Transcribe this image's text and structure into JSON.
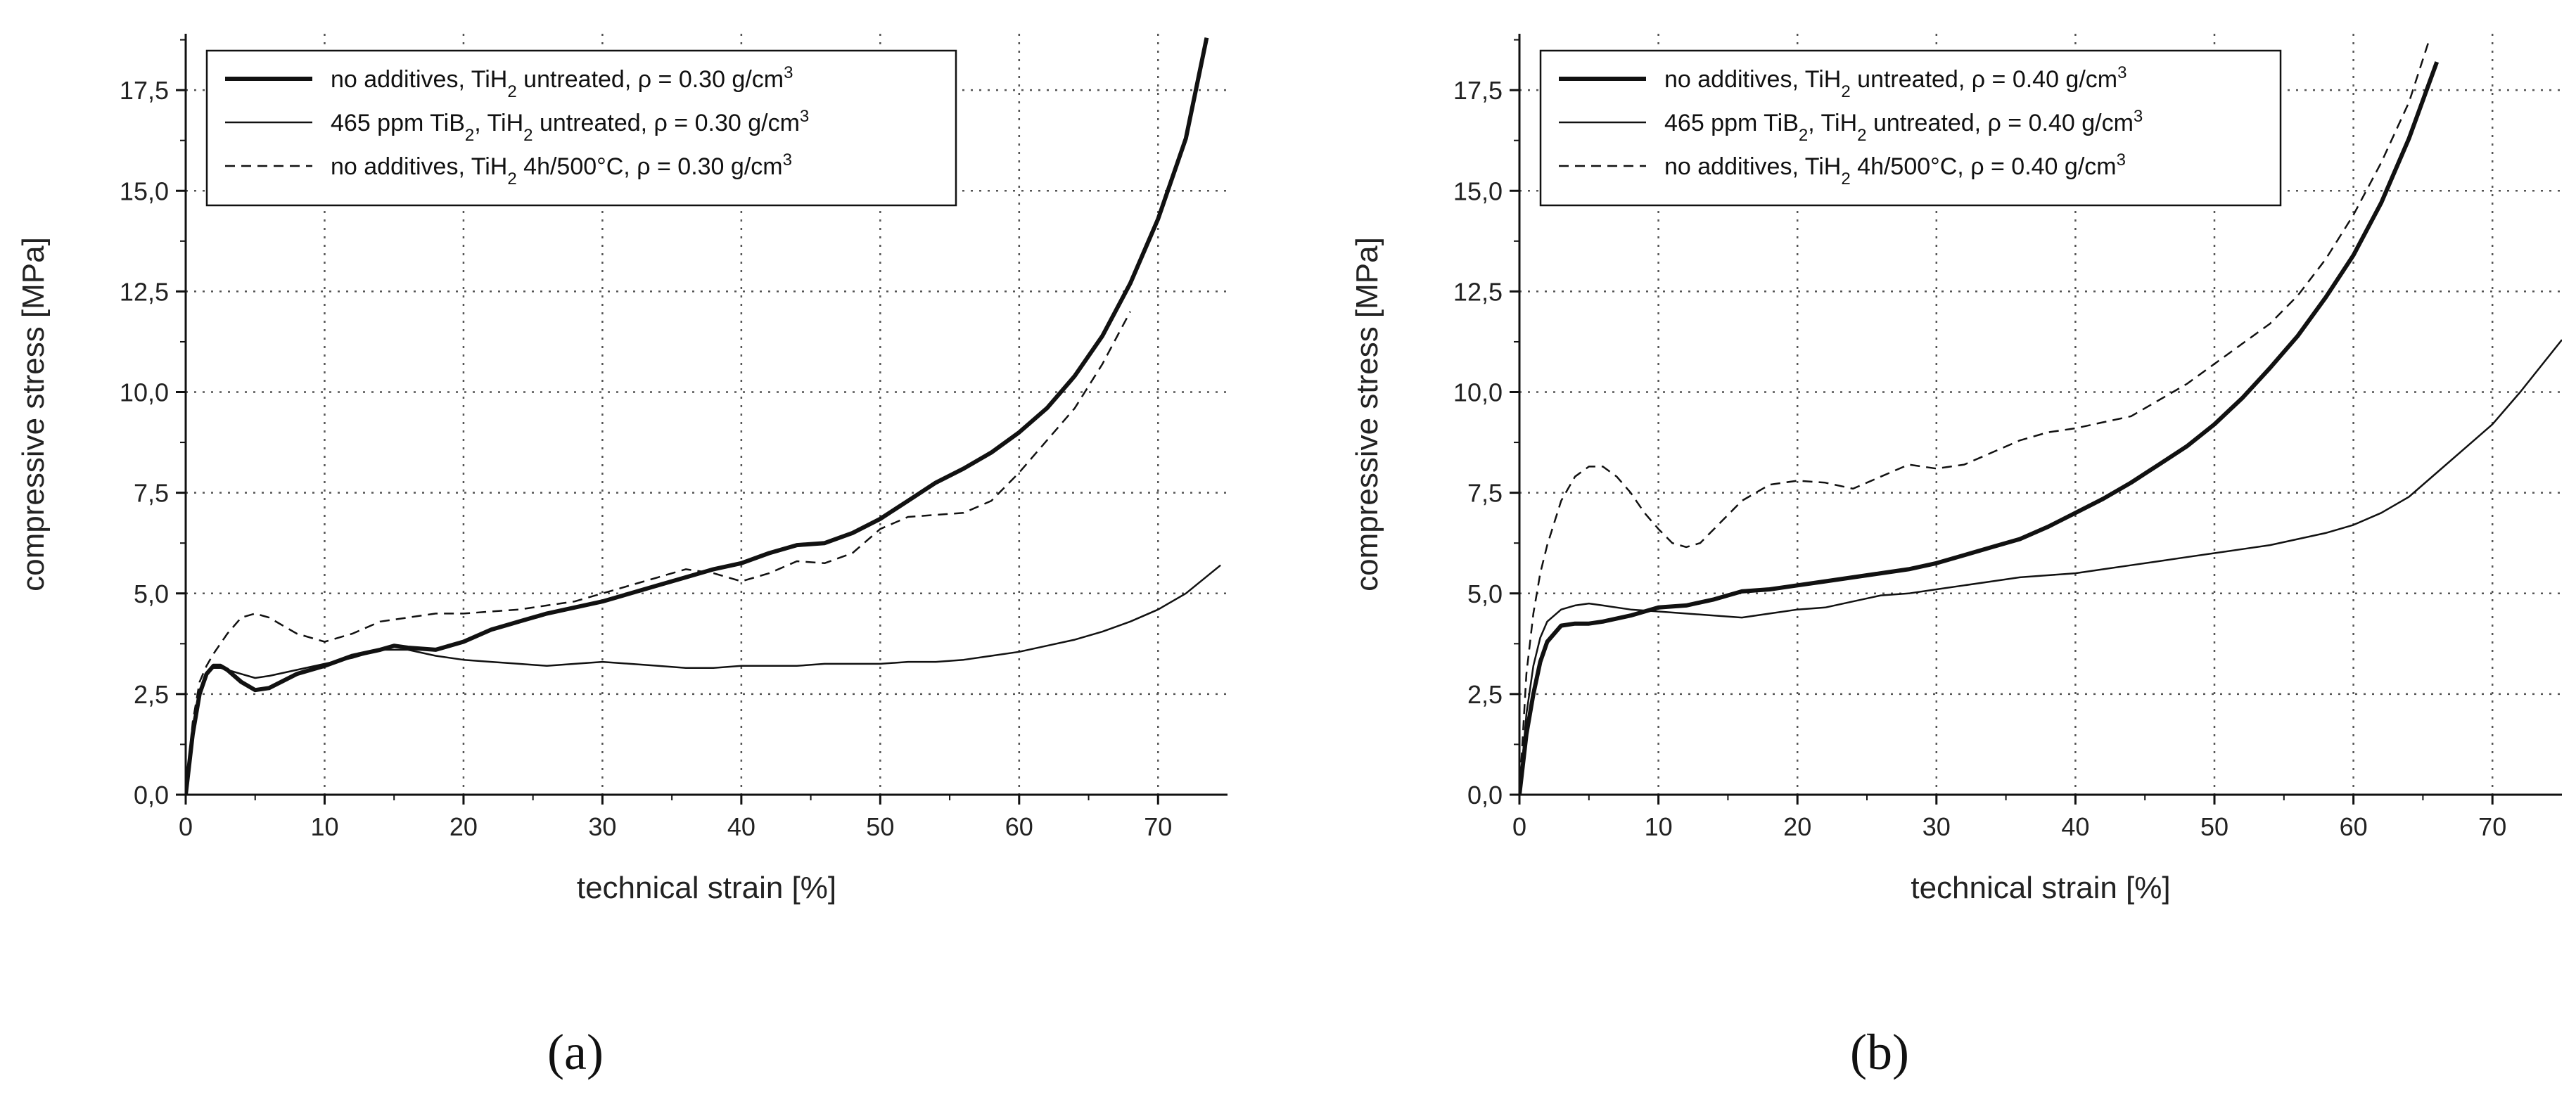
{
  "chart_data": [
    {
      "type": "line",
      "panel_label": "(a)",
      "xlabel": "technical strain [%]",
      "ylabel": "compressive stress [MPa]",
      "xlim": [
        0,
        75
      ],
      "ylim": [
        0,
        18.9
      ],
      "xticks": [
        "0",
        "10",
        "20",
        "30",
        "40",
        "50",
        "60",
        "70"
      ],
      "xtick_values": [
        0,
        10,
        20,
        30,
        40,
        50,
        60,
        70
      ],
      "yticks": [
        "0,0",
        "2,5",
        "5,0",
        "7,5",
        "10,0",
        "12,5",
        "15,0",
        "17,5"
      ],
      "ytick_values": [
        0,
        2.5,
        5,
        7.5,
        10,
        12.5,
        15,
        17.5
      ],
      "grid": true,
      "legend_position": "top-left",
      "series": [
        {
          "name": "no additives, TiH₂ untreated, ρ = 0.30 g/cm³",
          "legend": {
            "pre": "no additives, TiH",
            "sub": "2",
            "mid": " untreated, ρ = 0.30 g/cm",
            "sup": "3"
          },
          "style": "thick",
          "x": [
            0,
            0.5,
            1,
            1.5,
            2,
            2.5,
            3,
            4,
            5,
            6,
            8,
            10,
            12,
            14,
            15,
            16,
            18,
            20,
            22,
            24,
            26,
            28,
            30,
            32,
            34,
            36,
            38,
            40,
            42,
            44,
            46,
            48,
            50,
            52,
            54,
            56,
            58,
            60,
            62,
            64,
            66,
            68,
            70,
            72,
            73.5
          ],
          "y": [
            0,
            1.5,
            2.5,
            3.0,
            3.2,
            3.2,
            3.1,
            2.8,
            2.6,
            2.65,
            3.0,
            3.2,
            3.45,
            3.6,
            3.7,
            3.65,
            3.6,
            3.8,
            4.1,
            4.3,
            4.5,
            4.65,
            4.8,
            5.0,
            5.2,
            5.4,
            5.6,
            5.75,
            6.0,
            6.2,
            6.25,
            6.5,
            6.85,
            7.3,
            7.75,
            8.1,
            8.5,
            9.0,
            9.6,
            10.4,
            11.4,
            12.7,
            14.3,
            16.3,
            18.8
          ]
        },
        {
          "name": "465 ppm TiB₂, TiH₂ untreated, ρ = 0.30 g/cm³",
          "legend": {
            "pre": "465 ppm TiB",
            "sub": "2",
            "mid": ", TiH",
            "sub2": "2",
            "post": " untreated, ρ = 0.30 g/cm",
            "sup": "3"
          },
          "style": "thin",
          "x": [
            0,
            0.5,
            1,
            1.5,
            2,
            2.5,
            3,
            4,
            5,
            6,
            8,
            10,
            12,
            14,
            16,
            18,
            20,
            22,
            24,
            26,
            28,
            30,
            32,
            34,
            36,
            38,
            40,
            42,
            44,
            46,
            48,
            50,
            52,
            54,
            56,
            58,
            60,
            62,
            64,
            66,
            68,
            70,
            72,
            74.5
          ],
          "y": [
            0,
            1.7,
            2.6,
            3.0,
            3.15,
            3.15,
            3.1,
            3.0,
            2.9,
            2.95,
            3.1,
            3.25,
            3.4,
            3.6,
            3.6,
            3.45,
            3.35,
            3.3,
            3.25,
            3.2,
            3.25,
            3.3,
            3.25,
            3.2,
            3.15,
            3.15,
            3.2,
            3.2,
            3.2,
            3.25,
            3.25,
            3.25,
            3.3,
            3.3,
            3.35,
            3.45,
            3.55,
            3.7,
            3.85,
            4.05,
            4.3,
            4.6,
            5.0,
            5.7
          ]
        },
        {
          "name": "no additives, TiH₂ 4h/500°C, ρ = 0.30 g/cm³",
          "legend": {
            "pre": "no additives, TiH",
            "sub": "2",
            "mid": " 4h/500°C, ρ = 0.30 g/cm",
            "sup": "3"
          },
          "style": "dashed",
          "x": [
            0,
            0.5,
            1,
            1.5,
            2,
            3,
            4,
            5,
            6,
            7,
            8,
            10,
            12,
            14,
            16,
            18,
            20,
            22,
            24,
            26,
            28,
            30,
            32,
            34,
            36,
            38,
            40,
            42,
            44,
            46,
            48,
            50,
            52,
            54,
            56,
            58,
            60,
            62,
            64,
            66,
            68
          ],
          "y": [
            0,
            1.8,
            2.8,
            3.2,
            3.5,
            4.0,
            4.4,
            4.5,
            4.4,
            4.2,
            4.0,
            3.8,
            4.0,
            4.3,
            4.4,
            4.5,
            4.5,
            4.55,
            4.6,
            4.7,
            4.8,
            5.0,
            5.2,
            5.4,
            5.6,
            5.5,
            5.3,
            5.5,
            5.8,
            5.75,
            6.0,
            6.6,
            6.9,
            6.95,
            7.0,
            7.3,
            8.0,
            8.8,
            9.6,
            10.7,
            12.0
          ]
        }
      ]
    },
    {
      "type": "line",
      "panel_label": "(b)",
      "xlabel": "technical strain [%]",
      "ylabel": "compressive stress [MPa]",
      "xlim": [
        0,
        75
      ],
      "ylim": [
        0,
        18.9
      ],
      "xticks": [
        "0",
        "10",
        "20",
        "30",
        "40",
        "50",
        "60",
        "70"
      ],
      "xtick_values": [
        0,
        10,
        20,
        30,
        40,
        50,
        60,
        70
      ],
      "yticks": [
        "0,0",
        "2,5",
        "5,0",
        "7,5",
        "10,0",
        "12,5",
        "15,0",
        "17,5"
      ],
      "ytick_values": [
        0,
        2.5,
        5,
        7.5,
        10,
        12.5,
        15,
        17.5
      ],
      "grid": true,
      "legend_position": "top-left",
      "series": [
        {
          "name": "no additives, TiH₂ untreated, ρ = 0.40 g/cm³",
          "legend": {
            "pre": "no additives, TiH",
            "sub": "2",
            "mid": " untreated, ρ = 0.40 g/cm",
            "sup": "3"
          },
          "style": "thick",
          "x": [
            0,
            0.5,
            1,
            1.5,
            2,
            3,
            4,
            5,
            6,
            8,
            10,
            12,
            14,
            16,
            18,
            20,
            22,
            24,
            26,
            28,
            30,
            32,
            34,
            36,
            38,
            40,
            42,
            44,
            46,
            48,
            50,
            52,
            54,
            56,
            58,
            60,
            62,
            64,
            66
          ],
          "y": [
            0,
            1.5,
            2.5,
            3.3,
            3.8,
            4.2,
            4.25,
            4.25,
            4.3,
            4.45,
            4.65,
            4.7,
            4.85,
            5.05,
            5.1,
            5.2,
            5.3,
            5.4,
            5.5,
            5.6,
            5.75,
            5.95,
            6.15,
            6.35,
            6.65,
            7.0,
            7.35,
            7.75,
            8.2,
            8.65,
            9.2,
            9.85,
            10.6,
            11.4,
            12.35,
            13.4,
            14.7,
            16.3,
            18.2
          ]
        },
        {
          "name": "465 ppm TiB₂, TiH₂ untreated, ρ = 0.40 g/cm³",
          "legend": {
            "pre": "465 ppm TiB",
            "sub": "2",
            "mid": ", TiH",
            "sub2": "2",
            "post": " untreated, ρ = 0.40 g/cm",
            "sup": "3"
          },
          "style": "thin",
          "x": [
            0,
            0.5,
            1,
            1.5,
            2,
            3,
            4,
            5,
            6,
            8,
            10,
            12,
            14,
            16,
            18,
            20,
            22,
            24,
            26,
            28,
            30,
            32,
            34,
            36,
            38,
            40,
            42,
            44,
            46,
            48,
            50,
            52,
            54,
            56,
            58,
            60,
            62,
            64,
            66,
            68,
            70,
            72,
            75
          ],
          "y": [
            0,
            2.0,
            3.2,
            3.9,
            4.3,
            4.6,
            4.7,
            4.75,
            4.7,
            4.6,
            4.55,
            4.5,
            4.45,
            4.4,
            4.5,
            4.6,
            4.65,
            4.8,
            4.95,
            5.0,
            5.1,
            5.2,
            5.3,
            5.4,
            5.45,
            5.5,
            5.6,
            5.7,
            5.8,
            5.9,
            6.0,
            6.1,
            6.2,
            6.35,
            6.5,
            6.7,
            7.0,
            7.4,
            8.0,
            8.6,
            9.2,
            10.0,
            11.3
          ]
        },
        {
          "name": "no additives, TiH₂ 4h/500°C, ρ = 0.40 g/cm³",
          "legend": {
            "pre": "no additives, TiH",
            "sub": "2",
            "mid": " 4h/500°C, ρ = 0.40 g/cm",
            "sup": "3"
          },
          "style": "dashed",
          "x": [
            0,
            0.5,
            1,
            1.5,
            2,
            3,
            4,
            5,
            6,
            7,
            8,
            9,
            10,
            11,
            12,
            13,
            14,
            16,
            18,
            20,
            22,
            24,
            26,
            28,
            30,
            32,
            34,
            36,
            38,
            40,
            42,
            44,
            46,
            48,
            50,
            52,
            54,
            56,
            58,
            60,
            62,
            64,
            65.5
          ],
          "y": [
            0,
            3.0,
            4.5,
            5.5,
            6.2,
            7.3,
            7.9,
            8.15,
            8.15,
            7.9,
            7.5,
            7.0,
            6.6,
            6.25,
            6.15,
            6.25,
            6.6,
            7.3,
            7.7,
            7.8,
            7.75,
            7.6,
            7.9,
            8.2,
            8.1,
            8.2,
            8.5,
            8.8,
            9.0,
            9.1,
            9.25,
            9.4,
            9.8,
            10.2,
            10.7,
            11.2,
            11.7,
            12.4,
            13.3,
            14.4,
            15.7,
            17.2,
            18.8
          ]
        }
      ]
    }
  ]
}
